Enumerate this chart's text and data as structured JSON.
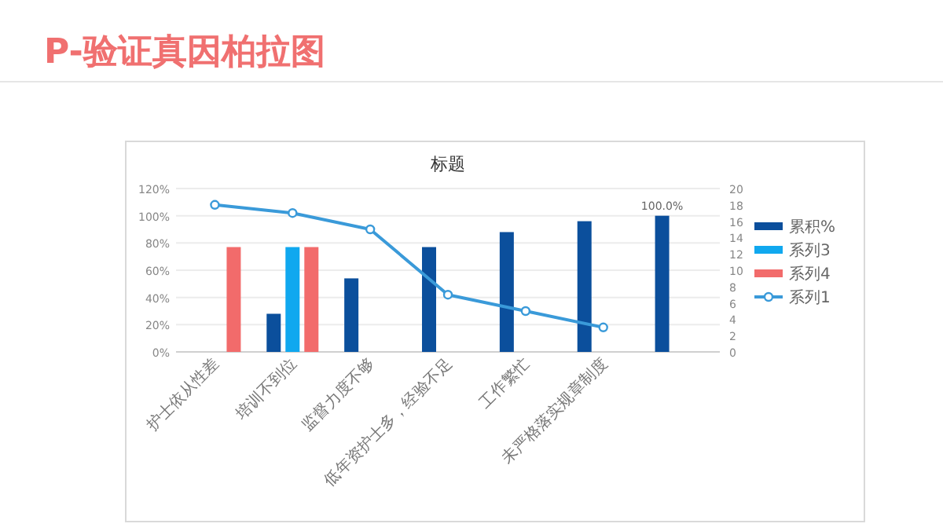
{
  "chart_data": {
    "type": "bar",
    "title": "P-验证真因柏拉图",
    "subtitle": "标题",
    "categories": [
      "护士依从性差",
      "培训不到位",
      "监督力度不够",
      "低年资护士多，经验不足",
      "工作繁忙",
      "未严格落实规章制度",
      null
    ],
    "series": [
      {
        "name": "累积%",
        "color": "#0b4f9c",
        "values": [
          null,
          28,
          54,
          77,
          88,
          96,
          100
        ],
        "value_labels": [
          null,
          null,
          null,
          null,
          null,
          null,
          "100.0%"
        ]
      },
      {
        "name": "系列3",
        "color": "#10a8ef",
        "values": [
          null,
          77,
          null,
          null,
          null,
          null,
          null
        ]
      },
      {
        "name": "系列4",
        "color": "#f26b6b",
        "values": [
          77,
          77,
          null,
          null,
          null,
          null,
          null
        ]
      },
      {
        "name": "系列1",
        "type": "line",
        "axis": "y2",
        "color": "#3a9ad9",
        "marker": "circle",
        "values": [
          18,
          17,
          15,
          7,
          5,
          3,
          null
        ]
      }
    ],
    "ylim": [
      0,
      120
    ],
    "yticks": [
      {
        "value": 0,
        "label": "0%"
      },
      {
        "value": 20,
        "label": "20%"
      },
      {
        "value": 40,
        "label": "40%"
      },
      {
        "value": 60,
        "label": "60%"
      },
      {
        "value": 80,
        "label": "80%"
      },
      {
        "value": 100,
        "label": "100%"
      },
      {
        "value": 120,
        "label": "120%"
      }
    ],
    "y2lim": [
      0,
      20
    ],
    "y2ticks": [
      0,
      2,
      4,
      6,
      8,
      10,
      12,
      14,
      16,
      18,
      20
    ],
    "grid": "y",
    "legend": "right"
  }
}
